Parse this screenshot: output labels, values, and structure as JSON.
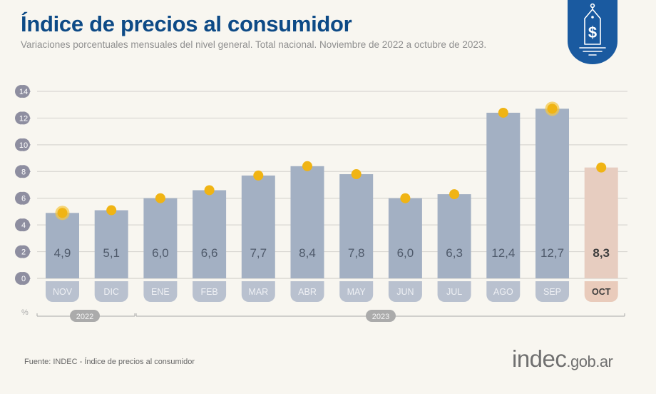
{
  "header": {
    "title": "Índice de precios al consumidor",
    "subtitle": "Variaciones porcentuales mensuales del nivel general. Total nacional. Noviembre de 2022 a octubre de 2023."
  },
  "badge": {
    "icon": "price-tag-dollar-icon",
    "symbol": "$"
  },
  "footer": {
    "source": "Fuente: INDEC - Índice de precios al consumidor",
    "logo_main": "indec",
    "logo_domain": ".gob.ar"
  },
  "colors": {
    "title": "#0d4a86",
    "bar": "#a3b0c3",
    "bar_highlight": "#e7cdc0",
    "dot": "#f0b414",
    "tick_bubble": "#8e8ea0",
    "label_pill": "#b9c1cf",
    "label_pill_highlight": "#e9cbbb"
  },
  "chart_data": {
    "type": "bar",
    "title": "Índice de precios al consumidor",
    "xlabel": "",
    "ylabel": "%",
    "ylim": [
      0,
      14
    ],
    "yticks": [
      0,
      2,
      4,
      6,
      8,
      10,
      12,
      14
    ],
    "grid": true,
    "categories": [
      "NOV",
      "DIC",
      "ENE",
      "FEB",
      "MAR",
      "ABR",
      "MAY",
      "JUN",
      "JUL",
      "AGO",
      "SEP",
      "OCT"
    ],
    "values": [
      4.9,
      5.1,
      6.0,
      6.6,
      7.7,
      8.4,
      7.8,
      6.0,
      6.3,
      12.4,
      12.7,
      8.3
    ],
    "value_labels": [
      "4,9",
      "5,1",
      "6,0",
      "6,6",
      "7,7",
      "8,4",
      "7,8",
      "6,0",
      "6,3",
      "12,4",
      "12,7",
      "8,3"
    ],
    "highlight_index": 11,
    "year_groups": [
      {
        "label": "2022",
        "start_index": 0,
        "end_index": 1
      },
      {
        "label": "2023",
        "start_index": 2,
        "end_index": 11
      }
    ]
  }
}
